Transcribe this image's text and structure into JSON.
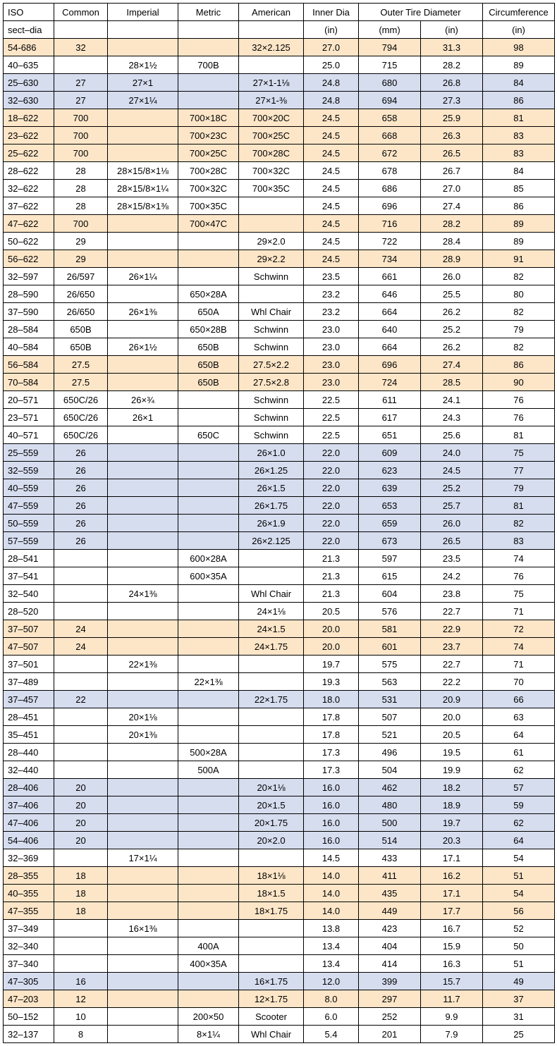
{
  "headers": {
    "row1": [
      "ISO",
      "Common",
      "Imperial",
      "Metric",
      "American",
      "Inner Dia",
      "Outer Tire Diameter",
      "Circumference"
    ],
    "row2": [
      "sect–dia",
      "",
      "",
      "",
      "",
      "(in)",
      "(mm)",
      "(in)",
      "(in)"
    ]
  },
  "colors": {
    "orange": "#fde6c8",
    "blue": "#d6ddef",
    "white": "#ffffff",
    "border": "#000000"
  },
  "rows": [
    {
      "c": "orange",
      "d": [
        "54-686",
        "32",
        "",
        "",
        "32×2.125",
        "27.0",
        "794",
        "31.3",
        "98"
      ]
    },
    {
      "c": "white",
      "d": [
        "40–635",
        "",
        "28×1½",
        "700B",
        "",
        "25.0",
        "715",
        "28.2",
        "89"
      ]
    },
    {
      "c": "blue",
      "d": [
        "25–630",
        "27",
        "27×1",
        "",
        "27×1-1⅛",
        "24.8",
        "680",
        "26.8",
        "84"
      ]
    },
    {
      "c": "blue",
      "d": [
        "32–630",
        "27",
        "27×1¼",
        "",
        "27×1-⅜",
        "24.8",
        "694",
        "27.3",
        "86"
      ]
    },
    {
      "c": "orange",
      "d": [
        "18–622",
        "700",
        "",
        "700×18C",
        "700×20C",
        "24.5",
        "658",
        "25.9",
        "81"
      ]
    },
    {
      "c": "orange",
      "d": [
        "23–622",
        "700",
        "",
        "700×23C",
        "700×25C",
        "24.5",
        "668",
        "26.3",
        "83"
      ]
    },
    {
      "c": "orange",
      "d": [
        "25–622",
        "700",
        "",
        "700×25C",
        "700×28C",
        "24.5",
        "672",
        "26.5",
        "83"
      ]
    },
    {
      "c": "white",
      "d": [
        "28–622",
        "28",
        "28×15/8×1⅛",
        "700×28C",
        "700×32C",
        "24.5",
        "678",
        "26.7",
        "84"
      ]
    },
    {
      "c": "white",
      "d": [
        "32–622",
        "28",
        "28×15/8×1¼",
        "700×32C",
        "700×35C",
        "24.5",
        "686",
        "27.0",
        "85"
      ]
    },
    {
      "c": "white",
      "d": [
        "37–622",
        "28",
        "28×15/8×1⅜",
        "700×35C",
        "",
        "24.5",
        "696",
        "27.4",
        "86"
      ]
    },
    {
      "c": "orange",
      "d": [
        "47–622",
        "700",
        "",
        "700×47C",
        "",
        "24.5",
        "716",
        "28.2",
        "89"
      ]
    },
    {
      "c": "white",
      "d": [
        "50–622",
        "29",
        "",
        "",
        "29×2.0",
        "24.5",
        "722",
        "28.4",
        "89"
      ]
    },
    {
      "c": "orange",
      "d": [
        "56–622",
        "29",
        "",
        "",
        "29×2.2",
        "24.5",
        "734",
        "28.9",
        "91"
      ]
    },
    {
      "c": "white",
      "d": [
        "32–597",
        "26/597",
        "26×1¼",
        "",
        "Schwinn",
        "23.5",
        "661",
        "26.0",
        "82"
      ]
    },
    {
      "c": "white",
      "d": [
        "28–590",
        "26/650",
        "",
        "650×28A",
        "",
        "23.2",
        "646",
        "25.5",
        "80"
      ]
    },
    {
      "c": "white",
      "d": [
        "37–590",
        "26/650",
        "26×1⅜",
        "650A",
        "Whl Chair",
        "23.2",
        "664",
        "26.2",
        "82"
      ]
    },
    {
      "c": "white",
      "d": [
        "28–584",
        "650B",
        "",
        "650×28B",
        "Schwinn",
        "23.0",
        "640",
        "25.2",
        "79"
      ]
    },
    {
      "c": "white",
      "d": [
        "40–584",
        "650B",
        "26×1½",
        "650B",
        "Schwinn",
        "23.0",
        "664",
        "26.2",
        "82"
      ]
    },
    {
      "c": "orange",
      "d": [
        "56–584",
        "27.5",
        "",
        "650B",
        "27.5×2.2",
        "23.0",
        "696",
        "27.4",
        "86"
      ]
    },
    {
      "c": "orange",
      "d": [
        "70–584",
        "27.5",
        "",
        "650B",
        "27.5×2.8",
        "23.0",
        "724",
        "28.5",
        "90"
      ]
    },
    {
      "c": "white",
      "d": [
        "20–571",
        "650C/26",
        "26×¾",
        "",
        "Schwinn",
        "22.5",
        "611",
        "24.1",
        "76"
      ]
    },
    {
      "c": "white",
      "d": [
        "23–571",
        "650C/26",
        "26×1",
        "",
        "Schwinn",
        "22.5",
        "617",
        "24.3",
        "76"
      ]
    },
    {
      "c": "white",
      "d": [
        "40–571",
        "650C/26",
        "",
        "650C",
        "Schwinn",
        "22.5",
        "651",
        "25.6",
        "81"
      ]
    },
    {
      "c": "blue",
      "d": [
        "25–559",
        "26",
        "",
        "",
        "26×1.0",
        "22.0",
        "609",
        "24.0",
        "75"
      ]
    },
    {
      "c": "blue",
      "d": [
        "32–559",
        "26",
        "",
        "",
        "26×1.25",
        "22.0",
        "623",
        "24.5",
        "77"
      ]
    },
    {
      "c": "blue",
      "d": [
        "40–559",
        "26",
        "",
        "",
        "26×1.5",
        "22.0",
        "639",
        "25.2",
        "79"
      ]
    },
    {
      "c": "blue",
      "d": [
        "47–559",
        "26",
        "",
        "",
        "26×1.75",
        "22.0",
        "653",
        "25.7",
        "81"
      ]
    },
    {
      "c": "blue",
      "d": [
        "50–559",
        "26",
        "",
        "",
        "26×1.9",
        "22.0",
        "659",
        "26.0",
        "82"
      ]
    },
    {
      "c": "blue",
      "d": [
        "57–559",
        "26",
        "",
        "",
        "26×2.125",
        "22.0",
        "673",
        "26.5",
        "83"
      ]
    },
    {
      "c": "white",
      "d": [
        "28–541",
        "",
        "",
        "600×28A",
        "",
        "21.3",
        "597",
        "23.5",
        "74"
      ]
    },
    {
      "c": "white",
      "d": [
        "37–541",
        "",
        "",
        "600×35A",
        "",
        "21.3",
        "615",
        "24.2",
        "76"
      ]
    },
    {
      "c": "white",
      "d": [
        "32–540",
        "",
        "24×1⅜",
        "",
        "Whl Chair",
        "21.3",
        "604",
        "23.8",
        "75"
      ]
    },
    {
      "c": "white",
      "d": [
        "28–520",
        "",
        "",
        "",
        "24×1⅛",
        "20.5",
        "576",
        "22.7",
        "71"
      ]
    },
    {
      "c": "orange",
      "d": [
        "37–507",
        "24",
        "",
        "",
        "24×1.5",
        "20.0",
        "581",
        "22.9",
        "72"
      ]
    },
    {
      "c": "orange",
      "d": [
        "47–507",
        "24",
        "",
        "",
        "24×1.75",
        "20.0",
        "601",
        "23.7",
        "74"
      ]
    },
    {
      "c": "white",
      "d": [
        "37–501",
        "",
        "22×1⅜",
        "",
        "",
        "19.7",
        "575",
        "22.7",
        "71"
      ]
    },
    {
      "c": "white",
      "d": [
        "37–489",
        "",
        "",
        "22×1⅜",
        "",
        "19.3",
        "563",
        "22.2",
        "70"
      ]
    },
    {
      "c": "blue",
      "d": [
        "37–457",
        "22",
        "",
        "",
        "22×1.75",
        "18.0",
        "531",
        "20.9",
        "66"
      ]
    },
    {
      "c": "white",
      "d": [
        "28–451",
        "",
        "20×1⅛",
        "",
        "",
        "17.8",
        "507",
        "20.0",
        "63"
      ]
    },
    {
      "c": "white",
      "d": [
        "35–451",
        "",
        "20×1⅜",
        "",
        "",
        "17.8",
        "521",
        "20.5",
        "64"
      ]
    },
    {
      "c": "white",
      "d": [
        "28–440",
        "",
        "",
        "500×28A",
        "",
        "17.3",
        "496",
        "19.5",
        "61"
      ]
    },
    {
      "c": "white",
      "d": [
        "32–440",
        "",
        "",
        "500A",
        "",
        "17.3",
        "504",
        "19.9",
        "62"
      ]
    },
    {
      "c": "blue",
      "d": [
        "28–406",
        "20",
        "",
        "",
        "20×1⅛",
        "16.0",
        "462",
        "18.2",
        "57"
      ]
    },
    {
      "c": "blue",
      "d": [
        "37–406",
        "20",
        "",
        "",
        "20×1.5",
        "16.0",
        "480",
        "18.9",
        "59"
      ]
    },
    {
      "c": "blue",
      "d": [
        "47–406",
        "20",
        "",
        "",
        "20×1.75",
        "16.0",
        "500",
        "19.7",
        "62"
      ]
    },
    {
      "c": "blue",
      "d": [
        "54–406",
        "20",
        "",
        "",
        "20×2.0",
        "16.0",
        "514",
        "20.3",
        "64"
      ]
    },
    {
      "c": "white",
      "d": [
        "32–369",
        "",
        "17×1¼",
        "",
        "",
        "14.5",
        "433",
        "17.1",
        "54"
      ]
    },
    {
      "c": "orange",
      "d": [
        "28–355",
        "18",
        "",
        "",
        "18×1⅛",
        "14.0",
        "411",
        "16.2",
        "51"
      ]
    },
    {
      "c": "orange",
      "d": [
        "40–355",
        "18",
        "",
        "",
        "18×1.5",
        "14.0",
        "435",
        "17.1",
        "54"
      ]
    },
    {
      "c": "orange",
      "d": [
        "47–355",
        "18",
        "",
        "",
        "18×1.75",
        "14.0",
        "449",
        "17.7",
        "56"
      ]
    },
    {
      "c": "white",
      "d": [
        "37–349",
        "",
        "16×1⅜",
        "",
        "",
        "13.8",
        "423",
        "16.7",
        "52"
      ]
    },
    {
      "c": "white",
      "d": [
        "32–340",
        "",
        "",
        "400A",
        "",
        "13.4",
        "404",
        "15.9",
        "50"
      ]
    },
    {
      "c": "white",
      "d": [
        "37–340",
        "",
        "",
        "400×35A",
        "",
        "13.4",
        "414",
        "16.3",
        "51"
      ]
    },
    {
      "c": "blue",
      "d": [
        "47–305",
        "16",
        "",
        "",
        "16×1.75",
        "12.0",
        "399",
        "15.7",
        "49"
      ]
    },
    {
      "c": "orange",
      "d": [
        "47–203",
        "12",
        "",
        "",
        "12×1.75",
        "8.0",
        "297",
        "11.7",
        "37"
      ]
    },
    {
      "c": "white",
      "d": [
        "50–152",
        "10",
        "",
        "200×50",
        "Scooter",
        "6.0",
        "252",
        "9.9",
        "31"
      ]
    },
    {
      "c": "white",
      "d": [
        "32–137",
        "8",
        "",
        "8×1¼",
        "Whl Chair",
        "5.4",
        "201",
        "7.9",
        "25"
      ]
    }
  ]
}
